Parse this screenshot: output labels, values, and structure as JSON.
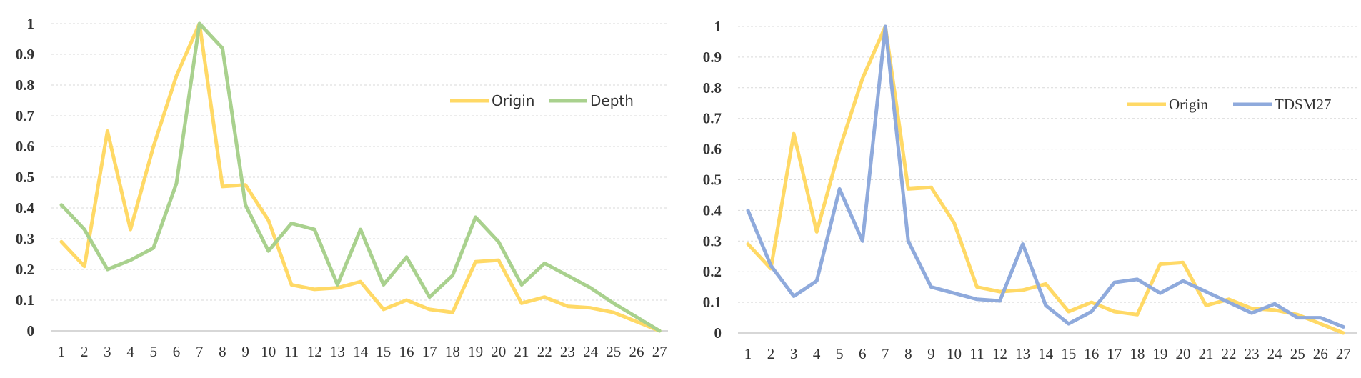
{
  "chart_data": [
    {
      "type": "line",
      "title": "",
      "xlabel": "",
      "ylabel": "",
      "categories": [
        "1",
        "2",
        "3",
        "4",
        "5",
        "6",
        "7",
        "8",
        "9",
        "10",
        "11",
        "12",
        "13",
        "14",
        "15",
        "16",
        "17",
        "18",
        "19",
        "20",
        "21",
        "22",
        "23",
        "24",
        "25",
        "26",
        "27"
      ],
      "yticks": [
        "0",
        "0.1",
        "0.2",
        "0.3",
        "0.4",
        "0.5",
        "0.6",
        "0.7",
        "0.8",
        "0.9",
        "1"
      ],
      "ylim": [
        0,
        1
      ],
      "grid": "horizontal dashed",
      "legend_position": "upper-right",
      "series": [
        {
          "name": "Origin",
          "color": "#FFD966",
          "values": [
            0.29,
            0.21,
            0.65,
            0.33,
            0.6,
            0.83,
            1.0,
            0.47,
            0.475,
            0.36,
            0.15,
            0.135,
            0.14,
            0.16,
            0.07,
            0.1,
            0.07,
            0.06,
            0.225,
            0.23,
            0.09,
            0.11,
            0.08,
            0.075,
            0.06,
            0.03,
            0.0
          ]
        },
        {
          "name": "Depth",
          "color": "#A9D18E",
          "values": [
            0.41,
            0.33,
            0.2,
            0.23,
            0.27,
            0.48,
            1.0,
            0.92,
            0.41,
            0.26,
            0.35,
            0.33,
            0.15,
            0.33,
            0.15,
            0.24,
            0.11,
            0.18,
            0.37,
            0.29,
            0.15,
            0.22,
            0.18,
            0.14,
            0.09,
            0.045,
            0.0
          ]
        }
      ]
    },
    {
      "type": "line",
      "title": "",
      "xlabel": "",
      "ylabel": "",
      "categories": [
        "1",
        "2",
        "3",
        "4",
        "5",
        "6",
        "7",
        "8",
        "9",
        "10",
        "11",
        "12",
        "13",
        "14",
        "15",
        "16",
        "17",
        "18",
        "19",
        "20",
        "21",
        "22",
        "23",
        "24",
        "25",
        "26",
        "27"
      ],
      "yticks": [
        "0",
        "0.1",
        "0.2",
        "0.3",
        "0.4",
        "0.5",
        "0.6",
        "0.7",
        "0.8",
        "0.9",
        "1"
      ],
      "ylim": [
        0,
        1
      ],
      "grid": "horizontal dashed",
      "legend_position": "upper-right",
      "series": [
        {
          "name": "Origin",
          "color": "#FFD966",
          "values": [
            0.29,
            0.21,
            0.65,
            0.33,
            0.6,
            0.83,
            1.0,
            0.47,
            0.475,
            0.36,
            0.15,
            0.135,
            0.14,
            0.16,
            0.07,
            0.1,
            0.07,
            0.06,
            0.225,
            0.23,
            0.09,
            0.11,
            0.08,
            0.075,
            0.06,
            0.03,
            0.0
          ]
        },
        {
          "name": "TDSM27",
          "color": "#8FAADC",
          "values": [
            0.4,
            0.22,
            0.12,
            0.17,
            0.47,
            0.3,
            1.0,
            0.3,
            0.15,
            0.13,
            0.11,
            0.105,
            0.29,
            0.09,
            0.03,
            0.07,
            0.165,
            0.175,
            0.13,
            0.17,
            0.135,
            0.1,
            0.065,
            0.095,
            0.05,
            0.05,
            0.02
          ]
        }
      ]
    }
  ]
}
